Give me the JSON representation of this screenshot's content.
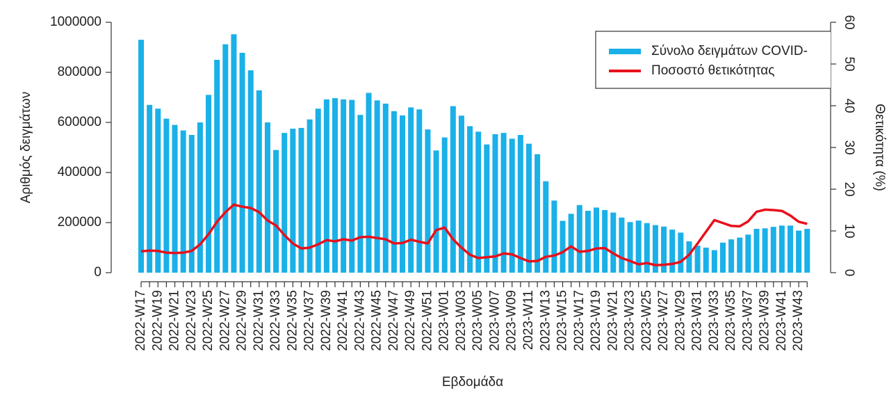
{
  "chart_data": {
    "type": "bar",
    "x_label": "Εβδομάδα",
    "y_label": "Αριθμός δειγμάτων",
    "y2_label": "Θετικότητα (%)",
    "categories": [
      "2022-W17",
      null,
      "2022-W19",
      null,
      "2022-W21",
      null,
      "2022-W23",
      null,
      "2022-W25",
      null,
      "2022-W27",
      null,
      "2022-W29",
      null,
      "2022-W31",
      null,
      "2022-W33",
      null,
      "2022-W35",
      null,
      "2022-W37",
      null,
      "2022-W39",
      null,
      "2022-W41",
      null,
      "2022-W43",
      null,
      "2022-W45",
      null,
      "2022-W47",
      null,
      "2022-W49",
      null,
      "2022-W51",
      null,
      "2023-W01",
      null,
      "2023-W03",
      null,
      "2023-W05",
      null,
      "2023-W07",
      null,
      "2023-W09",
      null,
      "2023-W11",
      null,
      "2023-W13",
      null,
      "2023-W15",
      null,
      "2023-W17",
      null,
      "2023-W19",
      null,
      "2023-W21",
      null,
      "2023-W23",
      null,
      "2023-W25",
      null,
      "2023-W27",
      null,
      "2023-W29",
      null,
      "2023-W31",
      null,
      "2023-W33",
      null,
      "2023-W35",
      null,
      "2023-W37",
      null,
      "2023-W39",
      null,
      "2023-W41",
      null,
      "2023-W43",
      null
    ],
    "series": [
      {
        "name": "Σύνολο δειγμάτων COVID-",
        "color": "#1ab0e8",
        "type": "bar",
        "values": [
          930000,
          670000,
          655000,
          615000,
          590000,
          568000,
          550000,
          600000,
          710000,
          850000,
          912000,
          952000,
          878000,
          808000,
          728000,
          600000,
          490000,
          558000,
          575000,
          578000,
          612000,
          655000,
          692000,
          697000,
          692000,
          690000,
          630000,
          718000,
          688000,
          675000,
          645000,
          628000,
          660000,
          652000,
          572000,
          488000,
          540000,
          665000,
          627000,
          585000,
          563000,
          512000,
          553000,
          558000,
          535000,
          550000,
          515000,
          473000,
          365000,
          288000,
          207000,
          235000,
          270000,
          247000,
          260000,
          250000,
          240000,
          220000,
          202000,
          208000,
          198000,
          190000,
          184000,
          172000,
          160000,
          125000,
          108000,
          100000,
          90000,
          120000,
          133000,
          140000,
          152000,
          175000,
          177000,
          183000,
          188000,
          188000,
          168000,
          175000
        ]
      },
      {
        "name": "Ποσοστό θετικότητας",
        "color": "#e8101a",
        "type": "line",
        "axis": "y2",
        "values": [
          5.1,
          5.3,
          5.2,
          4.8,
          4.7,
          4.8,
          5.2,
          6.8,
          9.2,
          12.2,
          14.5,
          16.3,
          15.8,
          15.5,
          14.5,
          12.5,
          11.3,
          9.0,
          7.0,
          5.8,
          6.0,
          6.8,
          7.8,
          7.5,
          8.0,
          7.7,
          8.5,
          8.6,
          8.3,
          8.0,
          7.0,
          7.1,
          7.9,
          7.4,
          7.0,
          10.2,
          10.8,
          8.0,
          6.0,
          4.3,
          3.5,
          3.7,
          3.9,
          4.6,
          4.4,
          3.5,
          2.7,
          2.8,
          3.8,
          4.1,
          4.9,
          6.3,
          5.0,
          5.2,
          5.8,
          5.9,
          4.6,
          3.5,
          2.8,
          2.0,
          2.3,
          1.8,
          1.9,
          2.1,
          2.6,
          4.3,
          7.0,
          9.8,
          12.6,
          11.9,
          11.2,
          11.1,
          12.3,
          14.6,
          15.1,
          15.0,
          14.8,
          13.7,
          12.2,
          11.7
        ]
      }
    ],
    "ylim": [
      0,
      1000000
    ],
    "yticks": [
      0,
      200000,
      400000,
      600000,
      800000,
      1000000
    ],
    "y2lim": [
      0,
      60
    ],
    "y2ticks": [
      0,
      10,
      20,
      30,
      40,
      50,
      60
    ],
    "legend": "top-right"
  }
}
